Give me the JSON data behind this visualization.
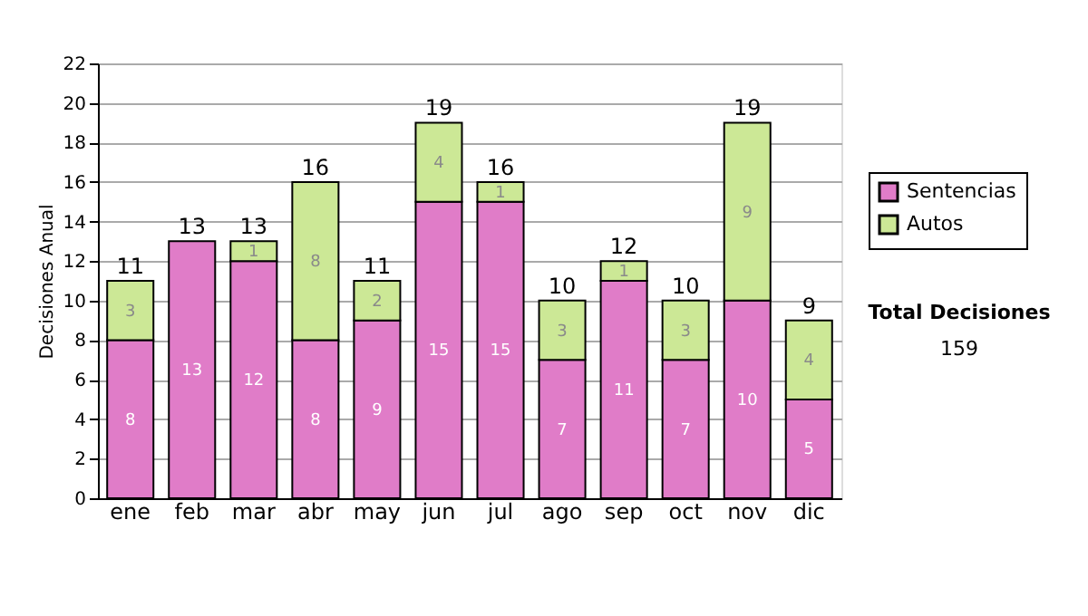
{
  "chart_data": {
    "type": "bar",
    "stacked": true,
    "ylabel": "Decisiones Anual",
    "categories": [
      "ene",
      "feb",
      "mar",
      "abr",
      "may",
      "jun",
      "jul",
      "ago",
      "sep",
      "oct",
      "nov",
      "dic"
    ],
    "series": [
      {
        "name": "Sentencias",
        "color": "#e07cc8",
        "values": [
          8,
          13,
          12,
          8,
          9,
          15,
          15,
          7,
          11,
          7,
          10,
          5
        ],
        "value_labels": [
          "8",
          "13",
          "12",
          "8",
          "9",
          "15",
          "15",
          "7",
          "11",
          "7",
          "10",
          "5"
        ]
      },
      {
        "name": "Autos",
        "color": "#cce896",
        "values": [
          3,
          0,
          1,
          8,
          2,
          4,
          1,
          3,
          1,
          3,
          9,
          4
        ],
        "value_labels": [
          "3",
          null,
          "1",
          "8",
          "2",
          "4",
          "1",
          "3",
          "1",
          "3",
          "9",
          "4"
        ]
      }
    ],
    "totals": [
      "11",
      "13",
      "13",
      "16",
      "11",
      "19",
      "16",
      "10",
      "12",
      "10",
      "19",
      "9"
    ],
    "ylim": [
      0,
      22
    ],
    "yticks": [
      0,
      2,
      4,
      6,
      8,
      10,
      12,
      14,
      16,
      18,
      20,
      22
    ],
    "grid": "y",
    "legend": "right",
    "annotations": [
      "Total Decisiones",
      "159"
    ]
  }
}
